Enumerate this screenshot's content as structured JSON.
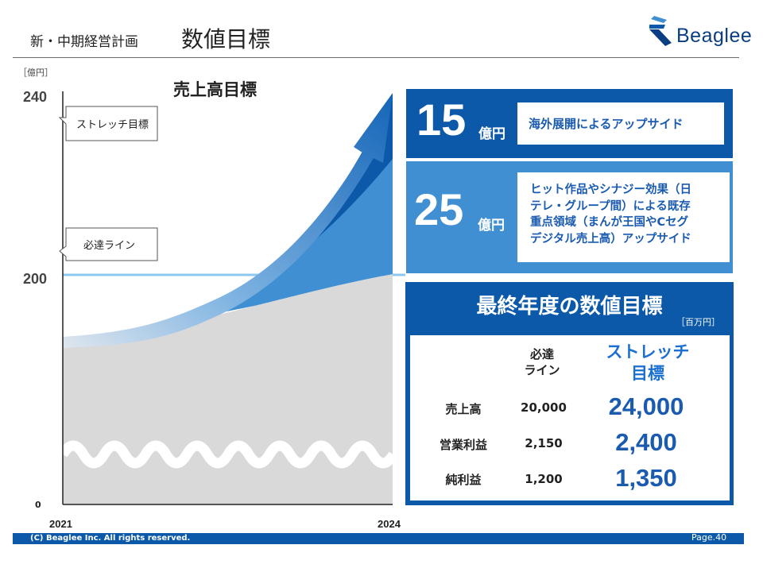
{
  "header": {
    "section": "新・中期経営計画",
    "title": "数値目標",
    "logo_text": "Beaglee"
  },
  "colors": {
    "primary_blue": "#0b59a8",
    "light_blue": "#3f8fd2",
    "line_blue": "#7fc0ea",
    "gray_fill": "#d9d9d9",
    "accent_text": "#1a5bb0"
  },
  "chart_data": {
    "type": "area",
    "title": "売上高目標",
    "ylabel": "［億円］",
    "x": [
      "2021",
      "2024"
    ],
    "y_ticks": [
      "240",
      "200",
      "0"
    ],
    "ylim": [
      0,
      240
    ],
    "axis_break": true,
    "series": [
      {
        "name": "必達ライン",
        "values": [
          null,
          200
        ]
      },
      {
        "name": "ストレッチ目標",
        "values": [
          null,
          240
        ]
      }
    ],
    "annotations": {
      "stretch_label": "ストレッチ目標",
      "required_label": "必達ライン"
    }
  },
  "upside": {
    "overseas": {
      "value": "15",
      "unit": "億円",
      "text": "海外展開によるアップサイド"
    },
    "domestic": {
      "value": "25",
      "unit": "億円",
      "text_lines": [
        "ヒット作品やシナジー効果（日",
        "テレ・グループ間）による既存",
        "重点領域（まんが王国やCセグ",
        "デジタル売上高）アップサイド"
      ]
    }
  },
  "final_targets": {
    "title": "最終年度の数値目標",
    "unit": "［百万円］",
    "col_required": [
      "必達",
      "ライン"
    ],
    "col_stretch": [
      "ストレッチ",
      "目標"
    ],
    "rows": [
      {
        "label": "売上高",
        "required": "20,000",
        "stretch": "24,000"
      },
      {
        "label": "営業利益",
        "required": "2,150",
        "stretch": "2,400"
      },
      {
        "label": "純利益",
        "required": "1,200",
        "stretch": "1,350"
      }
    ]
  },
  "footer": {
    "copyright": "(C) Beaglee Inc. All rights reserved.",
    "page": "Page.40"
  }
}
